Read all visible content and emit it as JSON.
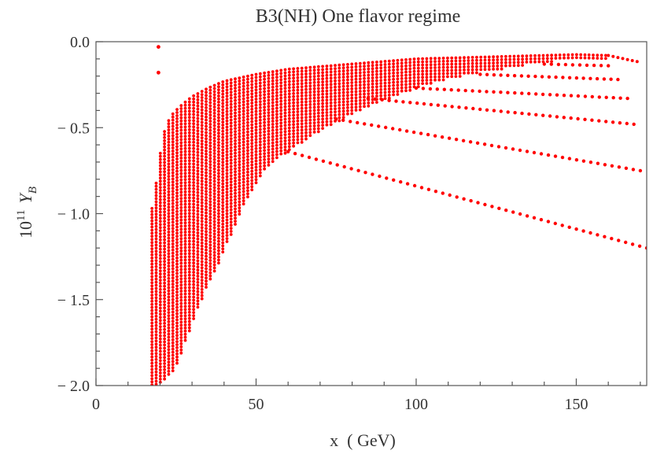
{
  "chart_data": {
    "type": "scatter",
    "title": "B3(NH) One flavor regime",
    "xlabel": "x  ( GeV)",
    "ylabel_base": "10",
    "ylabel_exp": "11",
    "ylabel_sym": "Y",
    "ylabel_sub": "B",
    "xlim": [
      0,
      172
    ],
    "ylim": [
      -2.0,
      0.0
    ],
    "x_ticks": [
      0,
      50,
      100,
      150
    ],
    "y_ticks": [
      0.0,
      -0.5,
      -1.0,
      -1.5,
      -2.0
    ],
    "x_tick_labels": [
      "0",
      "50",
      "100",
      "150"
    ],
    "y_tick_labels": [
      "0.0",
      "− 0.5",
      "− 1.0",
      "− 1.5",
      "− 2.0"
    ],
    "grid": false,
    "legend": "none",
    "marker_color": "#ff0000",
    "envelope_top": [
      [
        17.5,
        -0.97
      ],
      [
        19,
        -0.8
      ],
      [
        20,
        -0.66
      ],
      [
        21,
        -0.55
      ],
      [
        22,
        -0.48
      ],
      [
        24,
        -0.42
      ],
      [
        26,
        -0.38
      ],
      [
        28,
        -0.35
      ],
      [
        30,
        -0.32
      ],
      [
        35,
        -0.27
      ],
      [
        40,
        -0.23
      ],
      [
        50,
        -0.19
      ],
      [
        60,
        -0.16
      ],
      [
        70,
        -0.145
      ],
      [
        80,
        -0.13
      ],
      [
        90,
        -0.115
      ],
      [
        100,
        -0.1
      ],
      [
        110,
        -0.095
      ],
      [
        120,
        -0.09
      ],
      [
        130,
        -0.085
      ],
      [
        140,
        -0.08
      ],
      [
        150,
        -0.075
      ],
      [
        160,
        -0.08
      ],
      [
        165,
        -0.1
      ],
      [
        170,
        -0.12
      ]
    ],
    "envelope_bottom": [
      [
        17.5,
        -2.0
      ],
      [
        20,
        -2.0
      ],
      [
        22,
        -1.95
      ],
      [
        25,
        -1.9
      ],
      [
        27,
        -1.8
      ],
      [
        30,
        -1.65
      ],
      [
        33,
        -1.5
      ],
      [
        36,
        -1.38
      ],
      [
        40,
        -1.22
      ],
      [
        45,
        -1.0
      ],
      [
        50,
        -0.82
      ],
      [
        55,
        -0.7
      ],
      [
        60,
        -0.64
      ],
      [
        70,
        -0.52
      ],
      [
        80,
        -0.42
      ],
      [
        90,
        -0.34
      ],
      [
        100,
        -0.27
      ],
      [
        110,
        -0.22
      ],
      [
        120,
        -0.18
      ],
      [
        130,
        -0.15
      ],
      [
        140,
        -0.12
      ],
      [
        150,
        -0.1
      ],
      [
        160,
        -0.1
      ]
    ],
    "branches": [
      {
        "x_start": 60,
        "x_end": 172,
        "y_start": -0.64,
        "y_end": -1.2
      },
      {
        "x_start": 75,
        "x_end": 170,
        "y_start": -0.45,
        "y_end": -0.75
      },
      {
        "x_start": 85,
        "x_end": 168,
        "y_start": -0.33,
        "y_end": -0.48
      },
      {
        "x_start": 100,
        "x_end": 166,
        "y_start": -0.27,
        "y_end": -0.33
      },
      {
        "x_start": 120,
        "x_end": 163,
        "y_start": -0.19,
        "y_end": -0.22
      },
      {
        "x_start": 140,
        "x_end": 160,
        "y_start": -0.13,
        "y_end": -0.14
      }
    ],
    "outliers": [
      [
        19.5,
        -0.03
      ],
      [
        19.5,
        -0.18
      ]
    ]
  }
}
